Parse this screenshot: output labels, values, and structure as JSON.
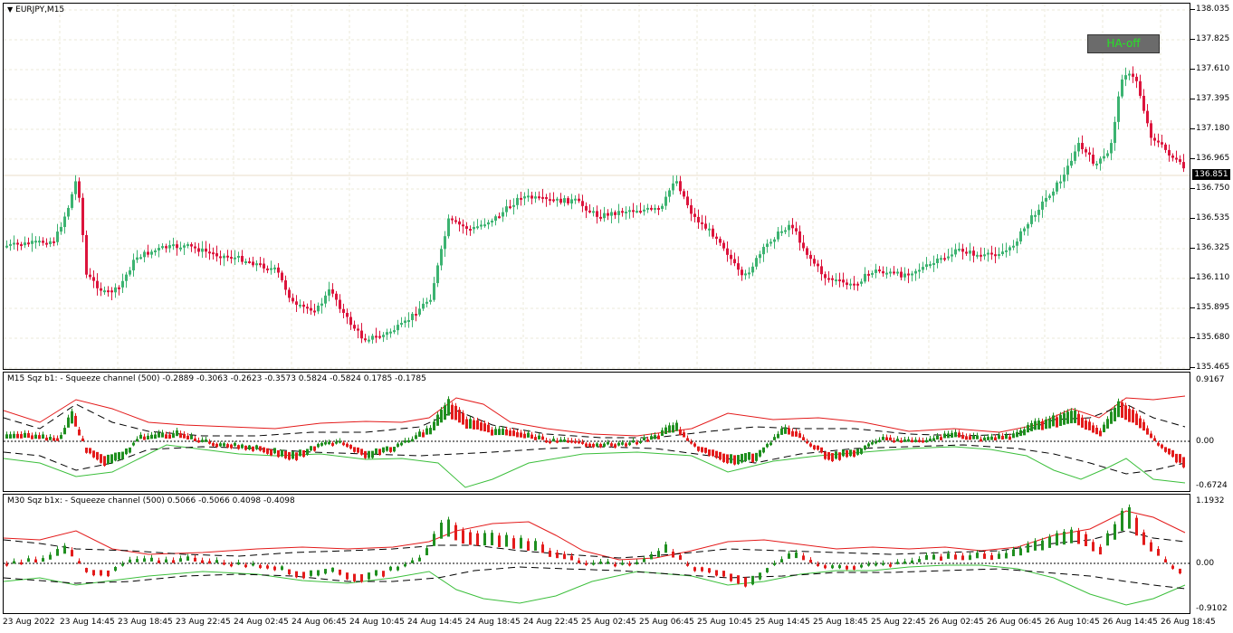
{
  "main_chart": {
    "title": "EURJPY,M15",
    "price_labels": [
      "138.035",
      "137.825",
      "137.610",
      "137.395",
      "137.180",
      "136.965",
      "136.750",
      "136.535",
      "136.325",
      "136.110",
      "135.895",
      "135.680",
      "135.465"
    ],
    "current_price": "136.851",
    "ha_button_label": "HA-off",
    "colors": {
      "bull": "#3cb371",
      "bear": "#dc143c",
      "grid": "#ebe8d8"
    }
  },
  "indicator_m15": {
    "title": "M15 Sqz b1: - Squeeze channel (500) -0.2889 -0.3063 -0.2623 -0.3573 0.5824 -0.5824 0.1785 -0.1785",
    "scale_labels": [
      "0.9167",
      "0.00",
      "-0.6724"
    ]
  },
  "indicator_m30": {
    "title": "M30 Sqz b1x: - Squeeze channel (500) 0.5066 -0.5066 0.4098 -0.4098",
    "scale_labels": [
      "1.1932",
      "0.00",
      "-0.9102"
    ]
  },
  "time_axis": [
    "23 Aug 2022",
    "23 Aug 14:45",
    "23 Aug 18:45",
    "23 Aug 22:45",
    "24 Aug 02:45",
    "24 Aug 06:45",
    "24 Aug 10:45",
    "24 Aug 14:45",
    "24 Aug 18:45",
    "24 Aug 22:45",
    "25 Aug 02:45",
    "25 Aug 06:45",
    "25 Aug 10:45",
    "25 Aug 14:45",
    "25 Aug 18:45",
    "25 Aug 22:45",
    "26 Aug 02:45",
    "26 Aug 06:45",
    "26 Aug 10:45",
    "26 Aug 14:45",
    "26 Aug 18:45"
  ]
}
